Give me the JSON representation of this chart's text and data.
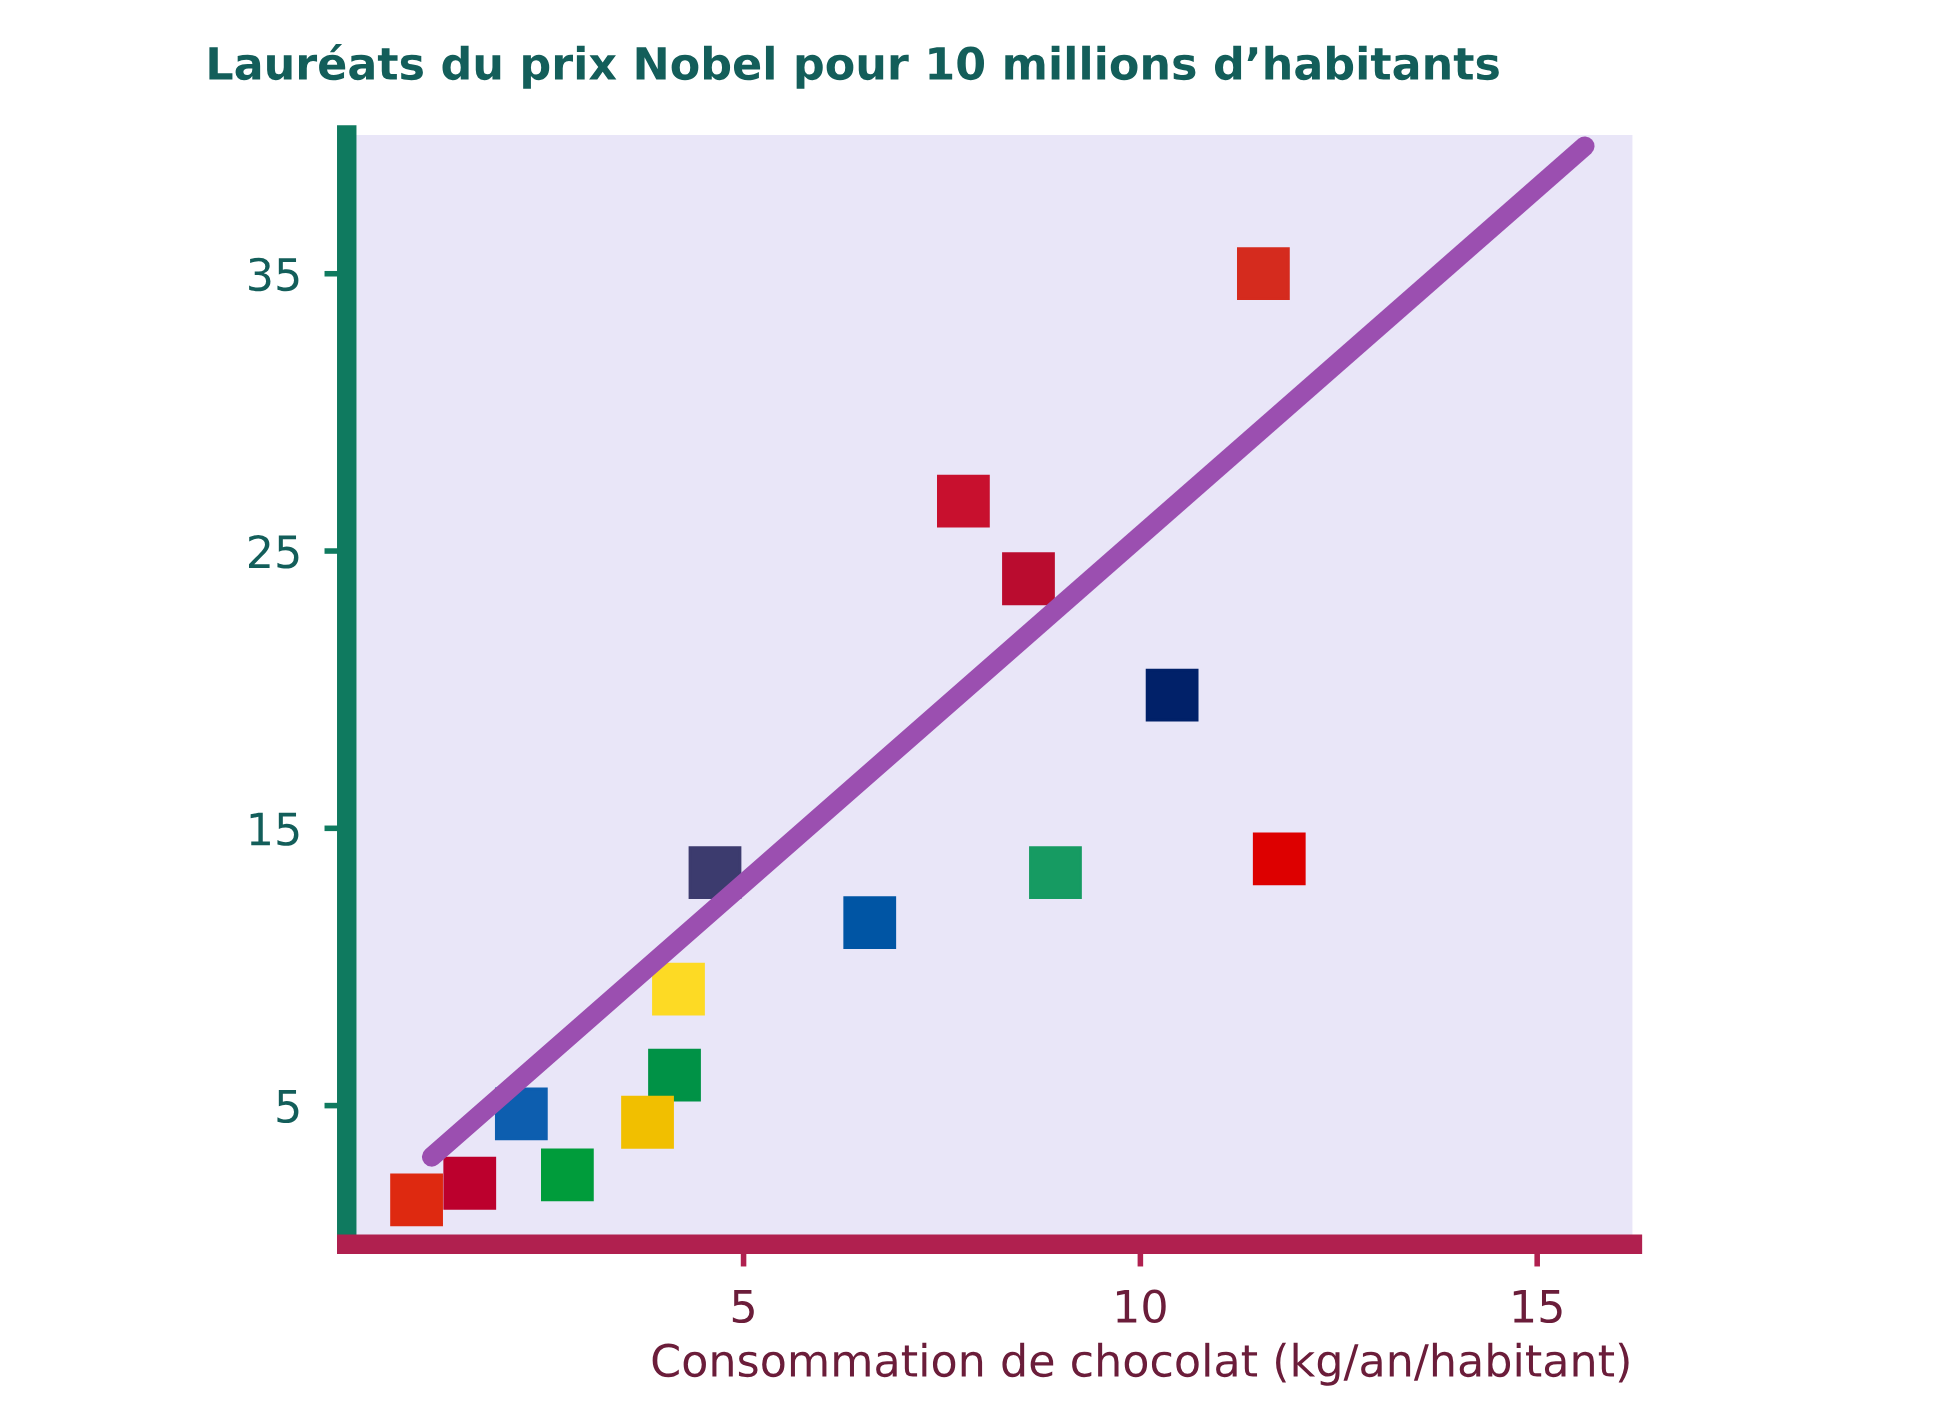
{
  "chart_data": {
    "type": "scatter",
    "title": "Lauréats du prix Nobel pour 10 millions d’habitants",
    "xlabel": "Consommation de chocolat (kg/an/habitant)",
    "xlim": [
      0,
      16.2
    ],
    "ylim": [
      0,
      40
    ],
    "xticks": [
      5,
      10,
      15
    ],
    "yticks": [
      5,
      15,
      25,
      35
    ],
    "grid": false,
    "marker": "square",
    "series": [
      {
        "x": [
          11.55,
          7.77,
          8.59,
          10.4,
          11.75,
          8.93,
          6.59,
          4.64,
          4.18,
          4.13,
          3.79,
          2.2,
          2.78,
          1.55,
          0.88
        ],
        "values": [
          35.0,
          26.8,
          24.0,
          19.8,
          13.9,
          13.4,
          11.6,
          13.4,
          9.2,
          6.1,
          4.4,
          4.7,
          2.5,
          2.2,
          1.6
        ],
        "colors": [
          "#d52b1e",
          "#c8102e",
          "#ba0c2f",
          "#012169",
          "#dd0000",
          "#169b62",
          "#0055a4",
          "#3c3b6e",
          "#fdda24",
          "#009246",
          "#f1bf00",
          "#0d5eaf",
          "#009c3b",
          "#bc002d",
          "#de2910"
        ]
      },
      {
        "type": "line",
        "x": [
          1.07,
          15.6
        ],
        "values": [
          3.15,
          39.6
        ],
        "color": "#9b4fb0",
        "marker": "none"
      }
    ]
  }
}
